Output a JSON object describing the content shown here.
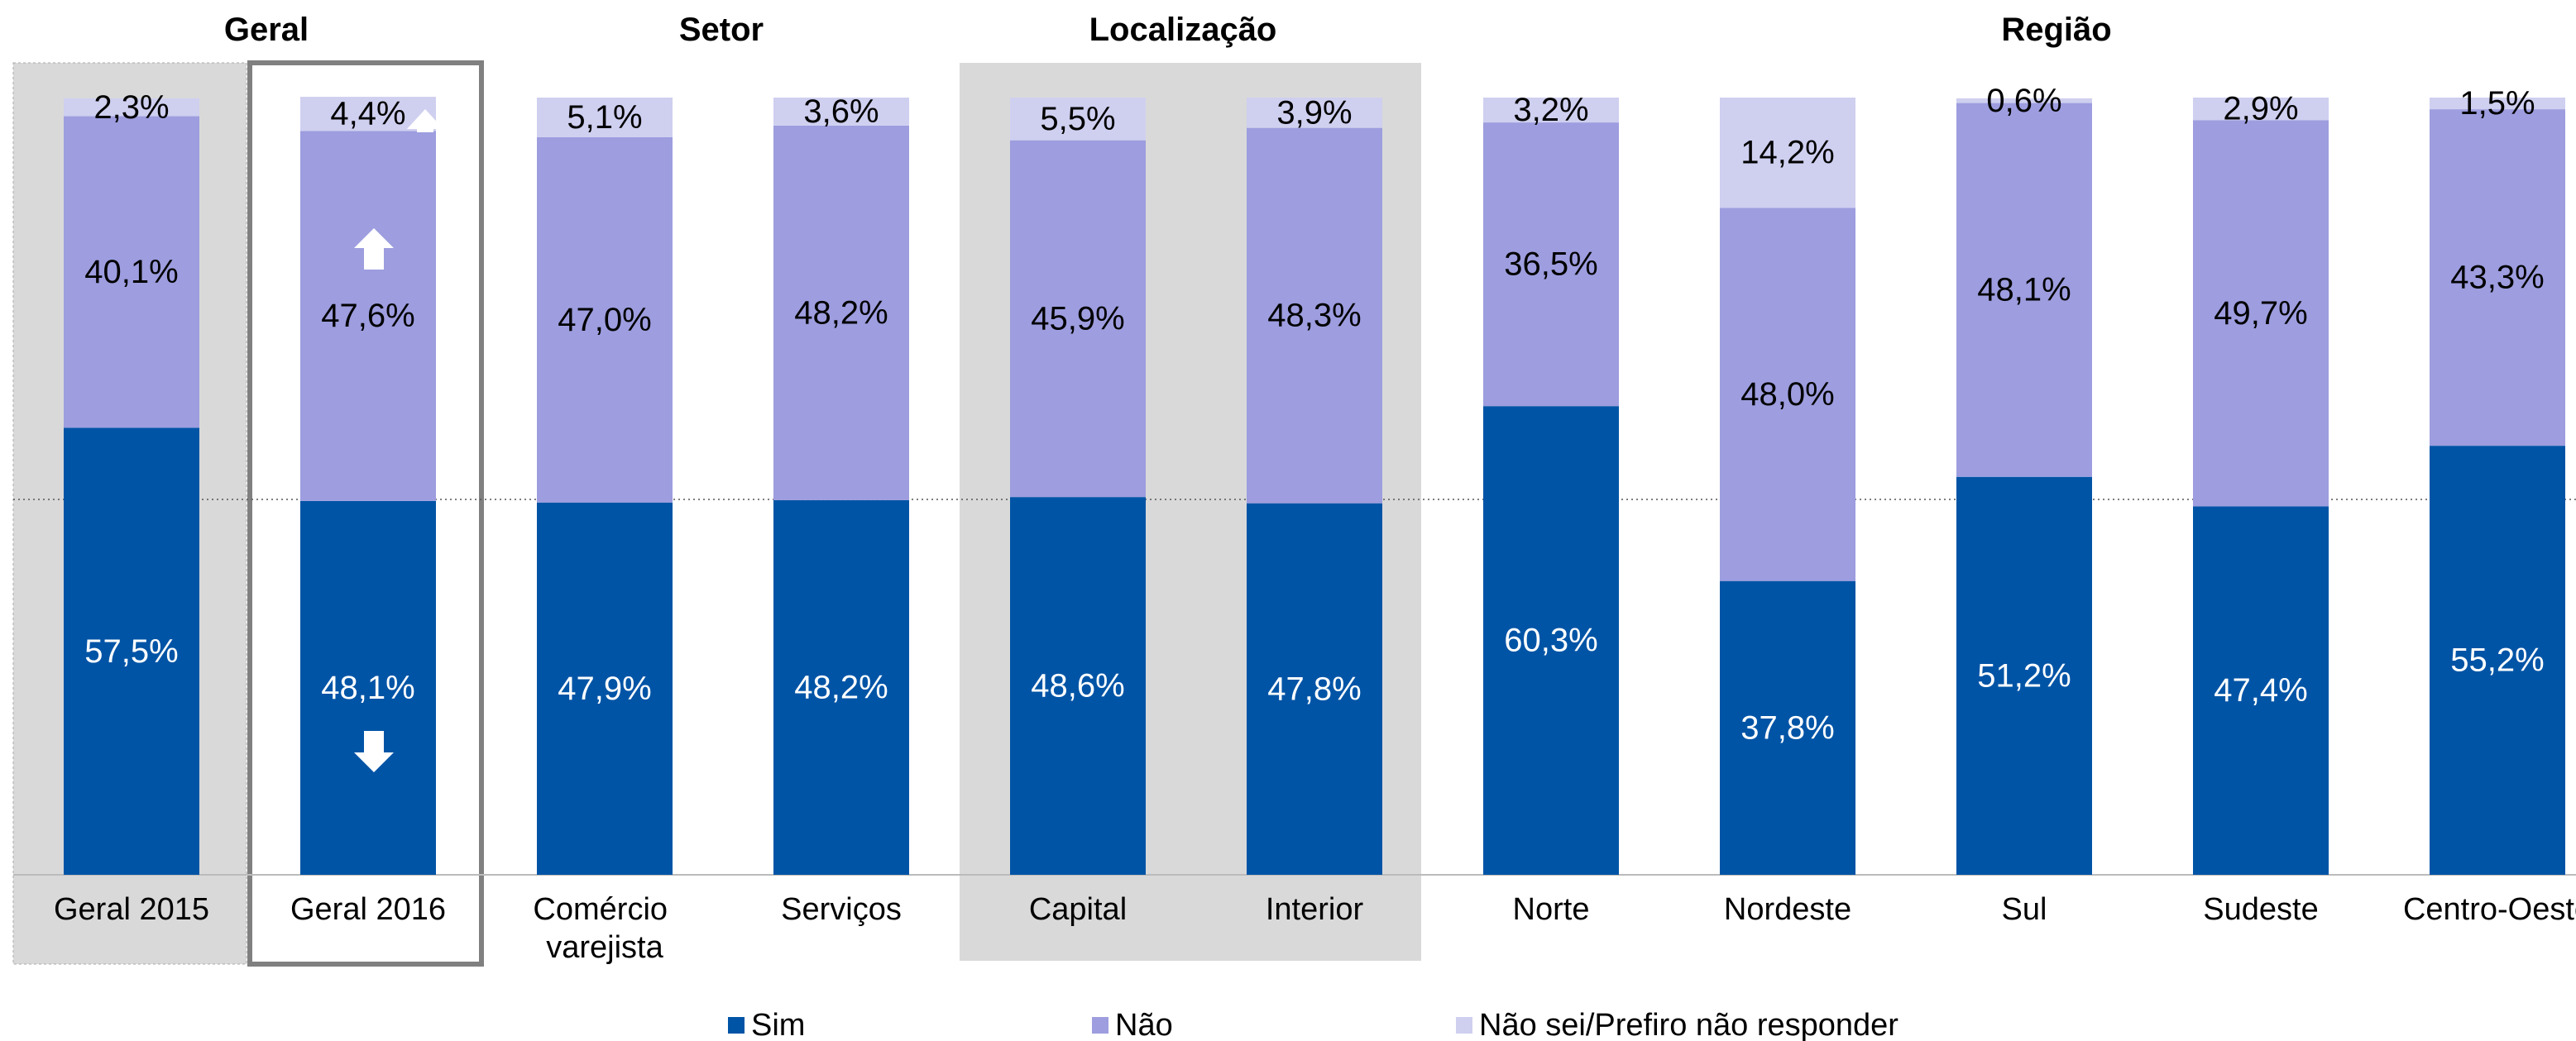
{
  "chart_data": {
    "type": "stacked_bar",
    "groups": [
      "Geral",
      "Setor",
      "Localização",
      "Região"
    ],
    "categories": [
      "Geral 2015",
      "Geral 2016",
      "Comércio varejista",
      "Serviços",
      "Capital",
      "Interior",
      "Norte",
      "Nordeste",
      "Sul",
      "Sudeste",
      "Centro-Oeste"
    ],
    "ylim": [
      0,
      100
    ],
    "series": [
      {
        "name": "Sim",
        "color": "#0054a6",
        "label_color": "#ffffff",
        "values": [
          57.5,
          48.1,
          47.9,
          48.2,
          48.6,
          47.8,
          60.3,
          37.8,
          51.2,
          47.4,
          55.2
        ],
        "value_labels": [
          "57,5%",
          "48,1%",
          "47,9%",
          "48,2%",
          "48,6%",
          "47,8%",
          "60,3%",
          "37,8%",
          "51,2%",
          "47,4%",
          "55,2%"
        ]
      },
      {
        "name": "Não",
        "color": "#9d9ddf",
        "label_color": "#000000",
        "values": [
          40.1,
          47.6,
          47.0,
          48.2,
          45.9,
          48.3,
          36.5,
          48.0,
          48.1,
          49.7,
          43.3
        ],
        "value_labels": [
          "40,1%",
          "47,6%",
          "47,0%",
          "48,2%",
          "45,9%",
          "48,3%",
          "36,5%",
          "48,0%",
          "48,1%",
          "49,7%",
          "43,3%"
        ]
      },
      {
        "name": "Não sei/Prefiro não responder",
        "color": "#cfcff0",
        "label_color": "#000000",
        "values": [
          2.3,
          4.4,
          5.1,
          3.6,
          5.5,
          3.9,
          3.2,
          14.2,
          0.6,
          2.9,
          1.5
        ],
        "value_labels": [
          "2,3%",
          "4,4%",
          "5,1%",
          "3,6%",
          "5,5%",
          "3,9%",
          "3,2%",
          "14,2%",
          "0,6%",
          "2,9%",
          "1,5%"
        ]
      }
    ]
  }
}
